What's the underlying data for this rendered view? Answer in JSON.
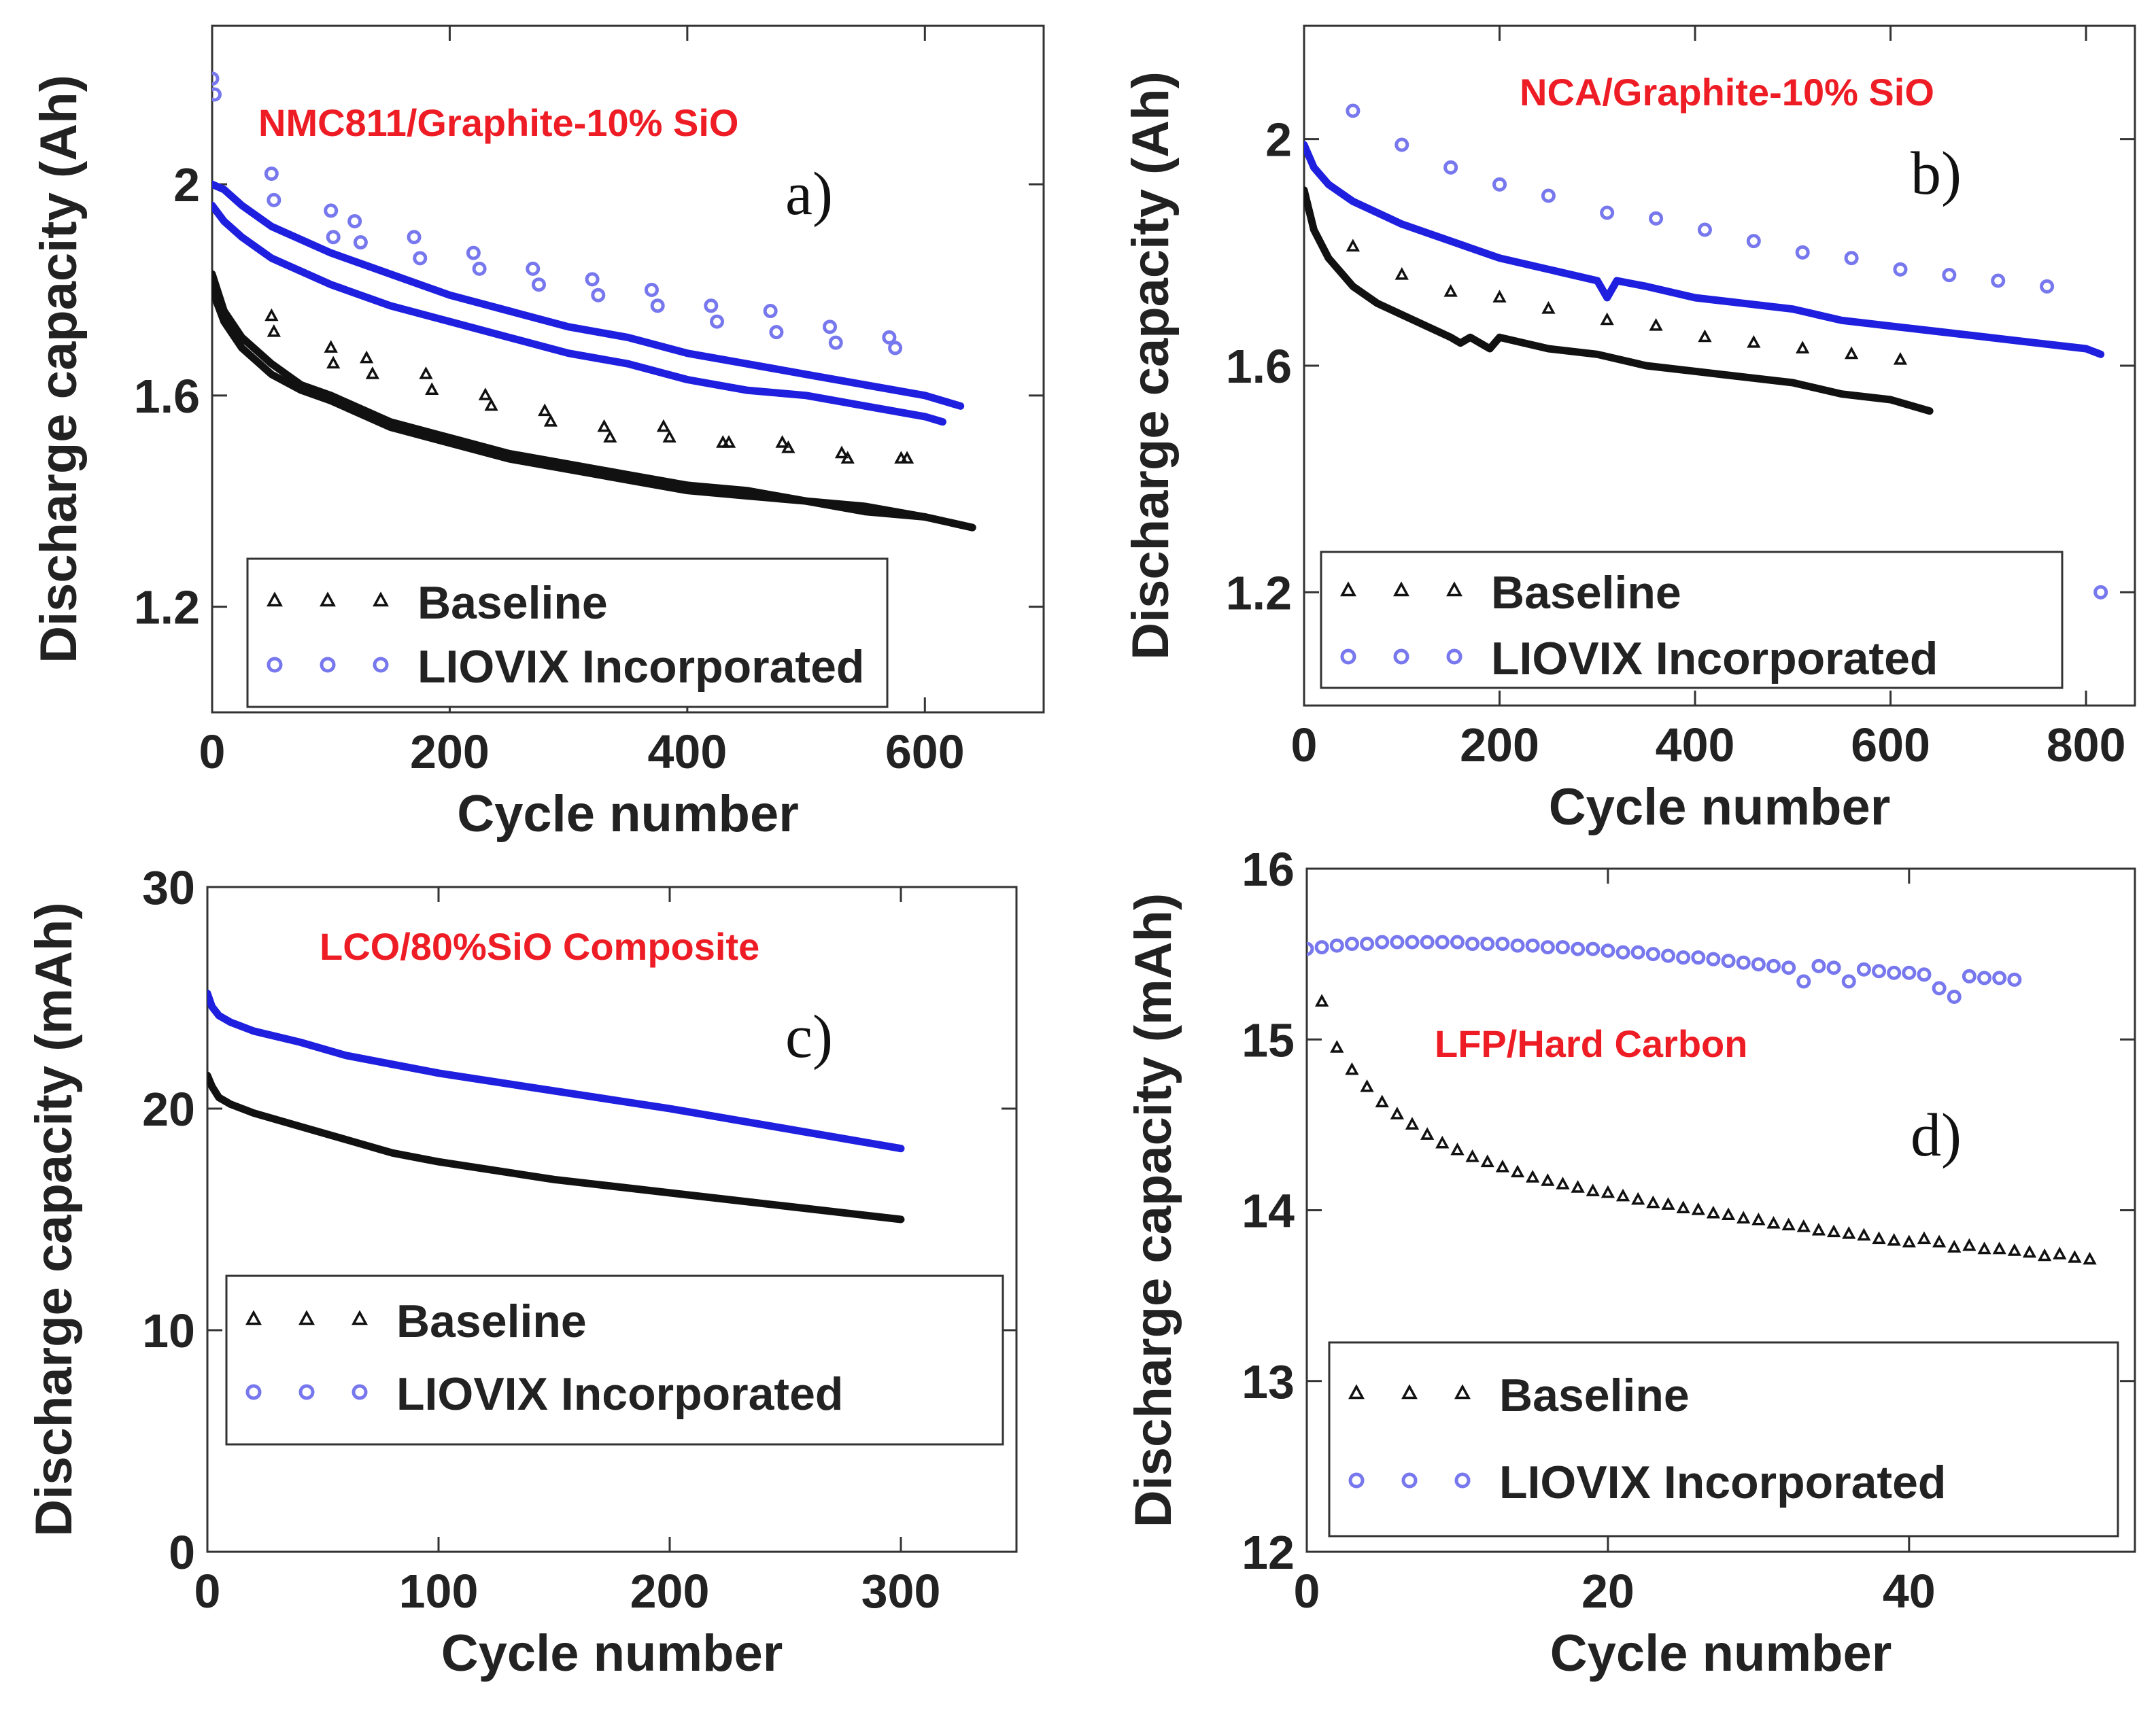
{
  "figure": {
    "colors": {
      "baseline": "#111111",
      "liovix": "#1f1fe0",
      "liovix_marker": "#7777ee",
      "title": "#ee1c24",
      "frame": "#333333"
    },
    "markers": {
      "baseline": "triangle",
      "liovix": "circle"
    }
  },
  "chart_data": [
    {
      "id": "a",
      "type": "line",
      "panel_label": "a)",
      "title": "NMC811/Graphite-10% SiO",
      "xlabel": "Cycle number",
      "ylabel": "Discharge capacity (Ah)",
      "xlim": [
        0,
        700
      ],
      "ylim": [
        1.0,
        2.3
      ],
      "xticks": [
        0,
        200,
        400,
        600
      ],
      "yticks": [
        1.2,
        1.6,
        2.0
      ],
      "xtick_labels": [
        "0",
        "200",
        "400",
        "600"
      ],
      "ytick_labels": [
        "1.2",
        "1.6",
        "2"
      ],
      "legend": {
        "position": "bottom-left",
        "entries": [
          "Baseline",
          "LIOVIX Incorporated"
        ]
      },
      "series": [
        {
          "name": "Baseline",
          "style": "line",
          "x": [
            0,
            10,
            25,
            50,
            75,
            100,
            150,
            200,
            250,
            300,
            350,
            400,
            450,
            500,
            550,
            600,
            640
          ],
          "y": [
            1.83,
            1.76,
            1.71,
            1.66,
            1.62,
            1.6,
            1.55,
            1.52,
            1.49,
            1.47,
            1.45,
            1.43,
            1.42,
            1.4,
            1.39,
            1.37,
            1.35
          ]
        },
        {
          "name": "Baseline",
          "style": "line",
          "x": [
            0,
            10,
            25,
            50,
            75,
            100,
            150,
            200,
            250,
            300,
            350,
            400,
            450,
            500,
            550,
            600,
            640
          ],
          "y": [
            1.8,
            1.74,
            1.69,
            1.64,
            1.61,
            1.59,
            1.54,
            1.51,
            1.48,
            1.46,
            1.44,
            1.42,
            1.41,
            1.4,
            1.38,
            1.37,
            1.35
          ]
        },
        {
          "name": "LIOVIX Incorporated",
          "style": "line",
          "x": [
            0,
            10,
            25,
            50,
            100,
            150,
            200,
            250,
            300,
            350,
            400,
            450,
            500,
            550,
            600,
            630
          ],
          "y": [
            2.0,
            1.99,
            1.96,
            1.92,
            1.87,
            1.83,
            1.79,
            1.76,
            1.73,
            1.71,
            1.68,
            1.66,
            1.64,
            1.62,
            1.6,
            1.58
          ]
        },
        {
          "name": "LIOVIX Incorporated",
          "style": "line",
          "x": [
            0,
            10,
            25,
            50,
            100,
            150,
            200,
            250,
            300,
            350,
            400,
            450,
            500,
            550,
            600,
            615
          ],
          "y": [
            1.96,
            1.93,
            1.9,
            1.86,
            1.81,
            1.77,
            1.74,
            1.71,
            1.68,
            1.66,
            1.63,
            1.61,
            1.6,
            1.58,
            1.56,
            1.55
          ]
        },
        {
          "name": "Baseline",
          "style": "scatter",
          "x": [
            50,
            52,
            100,
            102,
            130,
            135,
            180,
            185,
            230,
            235,
            280,
            285,
            330,
            335,
            380,
            385,
            430,
            435,
            480,
            485,
            530,
            535,
            580,
            585
          ],
          "y": [
            1.75,
            1.72,
            1.69,
            1.66,
            1.67,
            1.64,
            1.64,
            1.61,
            1.6,
            1.58,
            1.57,
            1.55,
            1.54,
            1.52,
            1.54,
            1.52,
            1.51,
            1.51,
            1.51,
            1.5,
            1.49,
            1.48,
            1.48,
            1.48
          ]
        },
        {
          "name": "LIOVIX Incorporated",
          "style": "scatter",
          "x": [
            0,
            2,
            50,
            52,
            100,
            102,
            120,
            125,
            170,
            175,
            220,
            225,
            270,
            275,
            320,
            325,
            370,
            375,
            420,
            425,
            470,
            475,
            520,
            525,
            570,
            575
          ],
          "y": [
            2.2,
            2.17,
            2.02,
            1.97,
            1.95,
            1.9,
            1.93,
            1.89,
            1.9,
            1.86,
            1.87,
            1.84,
            1.84,
            1.81,
            1.82,
            1.79,
            1.8,
            1.77,
            1.77,
            1.74,
            1.76,
            1.72,
            1.73,
            1.7,
            1.71,
            1.69
          ]
        }
      ]
    },
    {
      "id": "b",
      "type": "line",
      "panel_label": "b)",
      "title": "NCA/Graphite-10% SiO",
      "xlabel": "Cycle number",
      "ylabel": "Discharge capacity (Ah)",
      "xlim": [
        0,
        850
      ],
      "ylim": [
        1.0,
        2.2
      ],
      "xticks": [
        0,
        200,
        400,
        600,
        800
      ],
      "yticks": [
        1.2,
        1.6,
        2.0
      ],
      "xtick_labels": [
        "0",
        "200",
        "400",
        "600",
        "800"
      ],
      "ytick_labels": [
        "1.2",
        "1.6",
        "2"
      ],
      "legend": {
        "position": "bottom-left",
        "entries": [
          "Baseline",
          "LIOVIX Incorporated"
        ]
      },
      "series": [
        {
          "name": "Baseline",
          "style": "line",
          "x": [
            0,
            10,
            25,
            50,
            75,
            100,
            150,
            160,
            170,
            190,
            200,
            250,
            300,
            350,
            400,
            450,
            500,
            550,
            600,
            640
          ],
          "y": [
            1.91,
            1.84,
            1.79,
            1.74,
            1.71,
            1.69,
            1.65,
            1.64,
            1.65,
            1.63,
            1.65,
            1.63,
            1.62,
            1.6,
            1.59,
            1.58,
            1.57,
            1.55,
            1.54,
            1.52
          ]
        },
        {
          "name": "LIOVIX Incorporated",
          "style": "line",
          "x": [
            0,
            10,
            25,
            50,
            100,
            150,
            200,
            250,
            300,
            310,
            320,
            350,
            400,
            450,
            500,
            550,
            600,
            650,
            700,
            750,
            800,
            815
          ],
          "y": [
            1.99,
            1.95,
            1.92,
            1.89,
            1.85,
            1.82,
            1.79,
            1.77,
            1.75,
            1.72,
            1.75,
            1.74,
            1.72,
            1.71,
            1.7,
            1.68,
            1.67,
            1.66,
            1.65,
            1.64,
            1.63,
            1.62
          ]
        },
        {
          "name": "Baseline",
          "style": "scatter",
          "x": [
            50,
            100,
            150,
            200,
            250,
            310,
            360,
            410,
            460,
            510,
            560,
            610
          ],
          "y": [
            1.81,
            1.76,
            1.73,
            1.72,
            1.7,
            1.68,
            1.67,
            1.65,
            1.64,
            1.63,
            1.62,
            1.61
          ]
        },
        {
          "name": "LIOVIX Incorporated",
          "style": "scatter",
          "x": [
            50,
            100,
            150,
            200,
            250,
            310,
            360,
            410,
            460,
            510,
            560,
            610,
            660,
            710,
            760,
            815
          ],
          "y": [
            2.05,
            1.99,
            1.95,
            1.92,
            1.9,
            1.87,
            1.86,
            1.84,
            1.82,
            1.8,
            1.79,
            1.77,
            1.76,
            1.75,
            1.74,
            1.2
          ]
        }
      ]
    },
    {
      "id": "c",
      "type": "line",
      "panel_label": "c)",
      "title": "LCO/80%SiO Composite",
      "xlabel": "Cycle number",
      "ylabel": "Discharge capacity (mAh)",
      "xlim": [
        0,
        350
      ],
      "ylim": [
        0,
        30
      ],
      "xticks": [
        0,
        100,
        200,
        300
      ],
      "yticks": [
        0,
        10,
        20,
        30
      ],
      "xtick_labels": [
        "0",
        "100",
        "200",
        "300"
      ],
      "ytick_labels": [
        "0",
        "10",
        "20",
        "30"
      ],
      "legend": {
        "position": "bottom-left",
        "entries": [
          "Baseline",
          "LIOVIX Incorporated"
        ]
      },
      "series": [
        {
          "name": "Baseline",
          "style": "line",
          "x": [
            0,
            2,
            5,
            10,
            20,
            40,
            60,
            80,
            100,
            150,
            200,
            250,
            300
          ],
          "y": [
            21.5,
            21.0,
            20.5,
            20.2,
            19.8,
            19.2,
            18.6,
            18.0,
            17.6,
            16.8,
            16.2,
            15.6,
            15.0
          ]
        },
        {
          "name": "LIOVIX Incorporated",
          "style": "line",
          "x": [
            0,
            2,
            5,
            10,
            20,
            40,
            60,
            80,
            100,
            150,
            200,
            250,
            300
          ],
          "y": [
            25.2,
            24.6,
            24.2,
            23.9,
            23.5,
            23.0,
            22.4,
            22.0,
            21.6,
            20.8,
            20.0,
            19.1,
            18.2
          ]
        }
      ]
    },
    {
      "id": "d",
      "type": "scatter",
      "panel_label": "d)",
      "title": "LFP/Hard Carbon",
      "xlabel": "Cycle number",
      "ylabel": "Discharge capacity (mAh)",
      "xlim": [
        0,
        55
      ],
      "ylim": [
        12,
        16
      ],
      "xticks": [
        0,
        20,
        40
      ],
      "yticks": [
        12,
        13,
        14,
        15,
        16
      ],
      "xtick_labels": [
        "0",
        "20",
        "40"
      ],
      "ytick_labels": [
        "12",
        "13",
        "14",
        "15",
        "16"
      ],
      "legend": {
        "position": "bottom-left",
        "entries": [
          "Baseline",
          "LIOVIX Incorporated"
        ]
      },
      "series": [
        {
          "name": "Baseline",
          "style": "scatter",
          "x": [
            1,
            2,
            3,
            4,
            5,
            6,
            7,
            8,
            9,
            10,
            11,
            12,
            13,
            14,
            15,
            16,
            17,
            18,
            19,
            20,
            21,
            22,
            23,
            24,
            25,
            26,
            27,
            28,
            29,
            30,
            31,
            32,
            33,
            34,
            35,
            36,
            37,
            38,
            39,
            40,
            41,
            42,
            43,
            44,
            45,
            46,
            47,
            48,
            49,
            50,
            51,
            52
          ],
          "y": [
            15.22,
            14.95,
            14.82,
            14.72,
            14.63,
            14.56,
            14.5,
            14.44,
            14.39,
            14.35,
            14.31,
            14.28,
            14.25,
            14.22,
            14.19,
            14.17,
            14.15,
            14.13,
            14.11,
            14.1,
            14.08,
            14.06,
            14.04,
            14.03,
            14.01,
            14.0,
            13.98,
            13.97,
            13.95,
            13.94,
            13.92,
            13.91,
            13.9,
            13.88,
            13.87,
            13.86,
            13.85,
            13.83,
            13.82,
            13.81,
            13.83,
            13.81,
            13.78,
            13.79,
            13.77,
            13.77,
            13.76,
            13.75,
            13.73,
            13.74,
            13.72,
            13.71
          ]
        },
        {
          "name": "LIOVIX Incorporated",
          "style": "scatter",
          "x": [
            0,
            1,
            2,
            3,
            4,
            5,
            6,
            7,
            8,
            9,
            10,
            11,
            12,
            13,
            14,
            15,
            16,
            17,
            18,
            19,
            20,
            21,
            22,
            23,
            24,
            25,
            26,
            27,
            28,
            29,
            30,
            31,
            32,
            33,
            34,
            35,
            36,
            37,
            38,
            39,
            40,
            41,
            42,
            43,
            44,
            45,
            46,
            47
          ],
          "y": [
            15.53,
            15.54,
            15.55,
            15.56,
            15.56,
            15.57,
            15.57,
            15.57,
            15.57,
            15.57,
            15.57,
            15.56,
            15.56,
            15.56,
            15.55,
            15.55,
            15.54,
            15.54,
            15.53,
            15.53,
            15.52,
            15.51,
            15.51,
            15.5,
            15.49,
            15.48,
            15.48,
            15.47,
            15.46,
            15.45,
            15.44,
            15.43,
            15.42,
            15.34,
            15.43,
            15.42,
            15.34,
            15.41,
            15.4,
            15.39,
            15.39,
            15.38,
            15.3,
            15.25,
            15.37,
            15.36,
            15.36,
            15.35
          ]
        }
      ]
    }
  ]
}
